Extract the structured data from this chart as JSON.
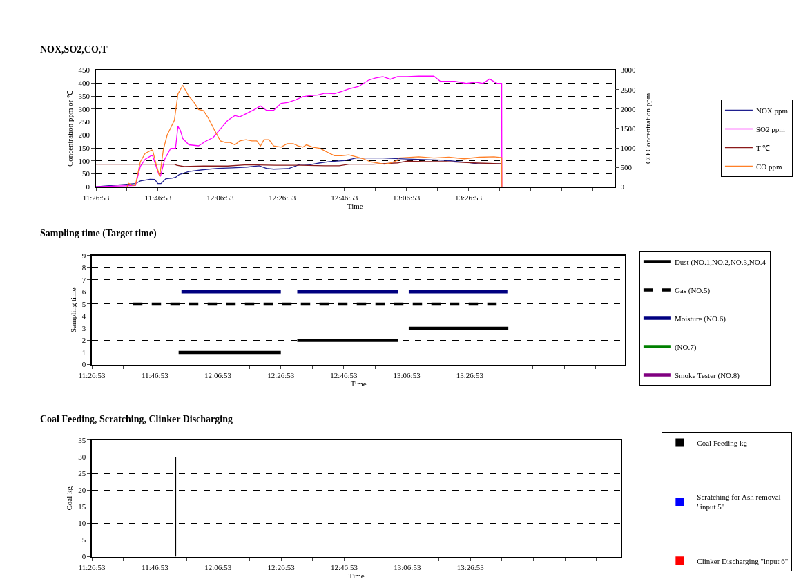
{
  "chart_data": [
    {
      "type": "line",
      "title": "NOX,SO2,CO,T",
      "xlabel": "Time",
      "ylabel": "Concentration ppm or ℃",
      "y2label": "CO Concentration ppm",
      "xlim": [
        11.4481,
        14.23
      ],
      "xticks": [
        {
          "value": 11.4481,
          "label": "11:26:53"
        },
        {
          "value": 11.6147,
          "label": null
        },
        {
          "value": 11.7814,
          "label": "11:46:53"
        },
        {
          "value": 11.9481,
          "label": null
        },
        {
          "value": 12.1147,
          "label": "12:06:53"
        },
        {
          "value": 12.2814,
          "label": null
        },
        {
          "value": 12.4481,
          "label": "12:26:53"
        },
        {
          "value": 12.6147,
          "label": null
        },
        {
          "value": 12.7814,
          "label": "12:46:53"
        },
        {
          "value": 12.9481,
          "label": null
        },
        {
          "value": 13.1147,
          "label": "13:06:53"
        },
        {
          "value": 13.2814,
          "label": null
        },
        {
          "value": 13.4481,
          "label": "13:26:53"
        },
        {
          "value": 13.6147,
          "label": null
        },
        {
          "value": 13.7814,
          "label": null
        },
        {
          "value": 13.9481,
          "label": null
        },
        {
          "value": 14.1147,
          "label": null
        }
      ],
      "ylim": [
        0,
        450
      ],
      "yticks": [
        0,
        50,
        100,
        150,
        200,
        250,
        300,
        350,
        400,
        450
      ],
      "y2lim": [
        0,
        3000
      ],
      "y2ticks": [
        0,
        500,
        1000,
        1500,
        2000,
        2500,
        3000
      ],
      "grid": "y",
      "legend": "right",
      "marker": "none",
      "series": [
        {
          "name": "NOX ppm",
          "color": "#1f1f8f",
          "x": [
            11.4481,
            11.66,
            11.686,
            11.738,
            11.764,
            11.78,
            11.797,
            11.823,
            11.855,
            11.875,
            11.895,
            11.947,
            12.025,
            12.103,
            12.181,
            12.259,
            12.324,
            12.363,
            12.402,
            12.48,
            12.546,
            12.598,
            12.65,
            12.702,
            12.78,
            12.845,
            12.91,
            12.988,
            13.118,
            13.205,
            13.329,
            13.391,
            13.453,
            13.502,
            13.626
          ],
          "values": [
            0,
            12,
            22,
            29,
            28,
            12,
            12,
            31,
            33,
            36,
            47,
            59,
            66,
            71,
            73,
            76,
            81,
            71,
            68,
            70,
            87,
            85,
            92,
            97,
            101,
            111,
            111,
            111,
            107,
            105,
            102,
            97,
            93,
            88,
            88
          ]
        },
        {
          "name": "SO2 ppm",
          "color": "#ff00ff",
          "x": [
            11.4481,
            11.66,
            11.686,
            11.712,
            11.745,
            11.752,
            11.784,
            11.794,
            11.817,
            11.849,
            11.875,
            11.888,
            11.901,
            11.914,
            11.947,
            11.999,
            12.038,
            12.077,
            12.116,
            12.155,
            12.194,
            12.22,
            12.259,
            12.298,
            12.331,
            12.363,
            12.402,
            12.442,
            12.481,
            12.52,
            12.559,
            12.598,
            12.637,
            12.676,
            12.728,
            12.767,
            12.806,
            12.858,
            12.91,
            12.949,
            12.988,
            13.028,
            13.067,
            13.119,
            13.181,
            13.262,
            13.297,
            13.375,
            13.436,
            13.486,
            13.524,
            13.561,
            13.602,
            13.626,
            13.627
          ],
          "values": [
            0,
            5,
            78,
            106,
            120,
            120,
            50,
            40,
            106,
            148,
            148,
            233,
            218,
            186,
            162,
            158,
            176,
            190,
            223,
            256,
            275,
            270,
            284,
            298,
            312,
            295,
            295,
            322,
            326,
            336,
            348,
            352,
            354,
            361,
            359,
            368,
            378,
            387,
            411,
            420,
            425,
            415,
            425,
            425,
            427,
            427,
            407,
            407,
            399,
            404,
            399,
            416,
            399,
            399,
            0
          ]
        },
        {
          "name": "T ℃",
          "color": "#8b1a1a",
          "x": [
            11.4481,
            11.869,
            11.882,
            11.921,
            12.025,
            12.155,
            12.259,
            12.415,
            12.546,
            12.676,
            12.754,
            12.806,
            12.936,
            13.067,
            13.118,
            13.205,
            13.329,
            13.439,
            13.563,
            13.626
          ],
          "values": [
            87,
            87,
            83,
            78,
            80,
            80,
            85,
            83,
            83,
            81,
            81,
            87,
            87,
            92,
            99,
            97,
            97,
            93,
            90,
            88
          ]
        },
        {
          "name": "CO ppm",
          "color": "#ff7f27",
          "axis": "y2",
          "x": [
            11.615,
            11.622,
            11.648,
            11.66,
            11.686,
            11.712,
            11.745,
            11.752,
            11.771,
            11.79,
            11.81,
            11.83,
            11.869,
            11.888,
            11.914,
            11.947,
            11.973,
            11.999,
            12.025,
            12.051,
            12.084,
            12.116,
            12.142,
            12.168,
            12.194,
            12.22,
            12.253,
            12.285,
            12.311,
            12.331,
            12.35,
            12.377,
            12.402,
            12.442,
            12.474,
            12.507,
            12.533,
            12.559,
            12.578,
            12.611,
            12.65,
            12.689,
            12.728,
            12.767,
            12.806,
            12.845,
            12.884,
            12.923,
            12.962,
            12.995,
            13.028,
            13.067,
            13.072,
            13.181,
            13.262,
            13.342,
            13.425,
            13.505,
            13.585,
            13.626,
            13.627
          ],
          "values": [
            0,
            90,
            30,
            50,
            640,
            860,
            940,
            940,
            580,
            270,
            960,
            1330,
            1710,
            2390,
            2610,
            2330,
            2180,
            1990,
            1960,
            1770,
            1460,
            1180,
            1140,
            1140,
            1080,
            1180,
            1210,
            1180,
            1180,
            1050,
            1210,
            1210,
            1050,
            1020,
            1110,
            1110,
            1050,
            1020,
            1080,
            1020,
            990,
            890,
            800,
            800,
            820,
            770,
            720,
            640,
            610,
            580,
            610,
            680,
            740,
            770,
            740,
            760,
            720,
            760,
            770,
            750,
            0
          ]
        }
      ]
    },
    {
      "type": "line",
      "title": "Sampling time (Target time)",
      "xlabel": "Time",
      "ylabel": "Sampling time",
      "xlim": [
        11.4481,
        14.27
      ],
      "xticks": [
        {
          "value": 11.4481,
          "label": "11:26:53"
        },
        {
          "value": 11.6147,
          "label": null
        },
        {
          "value": 11.7814,
          "label": "11:46:53"
        },
        {
          "value": 11.9481,
          "label": null
        },
        {
          "value": 12.1147,
          "label": "12:06:53"
        },
        {
          "value": 12.2814,
          "label": null
        },
        {
          "value": 12.4481,
          "label": "12:26:53"
        },
        {
          "value": 12.6147,
          "label": null
        },
        {
          "value": 12.7814,
          "label": "12:46:53"
        },
        {
          "value": 12.9481,
          "label": null
        },
        {
          "value": 13.1147,
          "label": "13:06:53"
        },
        {
          "value": 13.2814,
          "label": null
        },
        {
          "value": 13.4481,
          "label": "13:26:53"
        },
        {
          "value": 13.6147,
          "label": null
        },
        {
          "value": 13.7814,
          "label": null
        },
        {
          "value": 13.9481,
          "label": null
        },
        {
          "value": 14.1147,
          "label": null
        }
      ],
      "ylim": [
        0,
        9
      ],
      "yticks": [
        0,
        1,
        2,
        3,
        4,
        5,
        6,
        7,
        8,
        9
      ],
      "grid": "y",
      "legend": "right",
      "marker": "none",
      "series": [
        {
          "name": "Dust (NO.1,NO.2,NO.3,NO.4",
          "color": "#000000",
          "line_style": "solid",
          "x": [
            11.907,
            12.448,
            12.49,
            12.535,
            13.07,
            13.1,
            13.125,
            13.652
          ],
          "values": [
            1,
            1,
            null,
            2,
            2,
            null,
            3,
            3
          ]
        },
        {
          "name": "Gas (NO.5)",
          "color": "#000000",
          "line_style": "dashed",
          "x": [
            11.666,
            13.627
          ],
          "values": [
            5,
            5
          ]
        },
        {
          "name": "Moisture (NO.6)",
          "color": "#000080",
          "line_style": "solid",
          "x": [
            11.922,
            12.448,
            12.49,
            12.535,
            13.07,
            13.1,
            13.125,
            13.647
          ],
          "values": [
            6,
            6,
            null,
            6,
            6,
            null,
            6,
            6
          ]
        },
        {
          "name": "(NO.7)",
          "color": "#008000",
          "line_style": "solid"
        },
        {
          "name": "Smoke Tester (NO.8)",
          "color": "#800080",
          "line_style": "solid"
        }
      ]
    },
    {
      "type": "bar",
      "title": "Coal Feeding, Scratching, Clinker Discharging",
      "xlabel": "Time",
      "ylabel": "Coal kg",
      "xlim": [
        11.4481,
        14.244
      ],
      "xticks": [
        {
          "value": 11.4481,
          "label": "11:26:53"
        },
        {
          "value": 11.6147,
          "label": null
        },
        {
          "value": 11.7814,
          "label": "11:46:53"
        },
        {
          "value": 11.9481,
          "label": null
        },
        {
          "value": 12.1147,
          "label": "12:06:53"
        },
        {
          "value": 12.2814,
          "label": null
        },
        {
          "value": 12.4481,
          "label": "12:26:53"
        },
        {
          "value": 12.6147,
          "label": null
        },
        {
          "value": 12.7814,
          "label": "12:46:53"
        },
        {
          "value": 12.9481,
          "label": null
        },
        {
          "value": 13.1147,
          "label": "13:06:53"
        },
        {
          "value": 13.2814,
          "label": null
        },
        {
          "value": 13.4481,
          "label": "13:26:53"
        },
        {
          "value": 13.6147,
          "label": null
        },
        {
          "value": 13.7814,
          "label": null
        },
        {
          "value": 13.9481,
          "label": null
        },
        {
          "value": 14.1147,
          "label": null
        }
      ],
      "ylim": [
        0,
        35
      ],
      "yticks": [
        0,
        5,
        10,
        15,
        20,
        25,
        30,
        35
      ],
      "grid": "y",
      "legend": "right",
      "series": [
        {
          "name": "Coal Feeding kg",
          "color": "#000000",
          "x": [
            11.89
          ],
          "values": [
            30
          ]
        },
        {
          "name": "Scratching for Ash removal \"input 5\"",
          "color": "#0000ff"
        },
        {
          "name": "Clinker Discharging \"input 6\"",
          "color": "#ff0000"
        }
      ]
    }
  ]
}
